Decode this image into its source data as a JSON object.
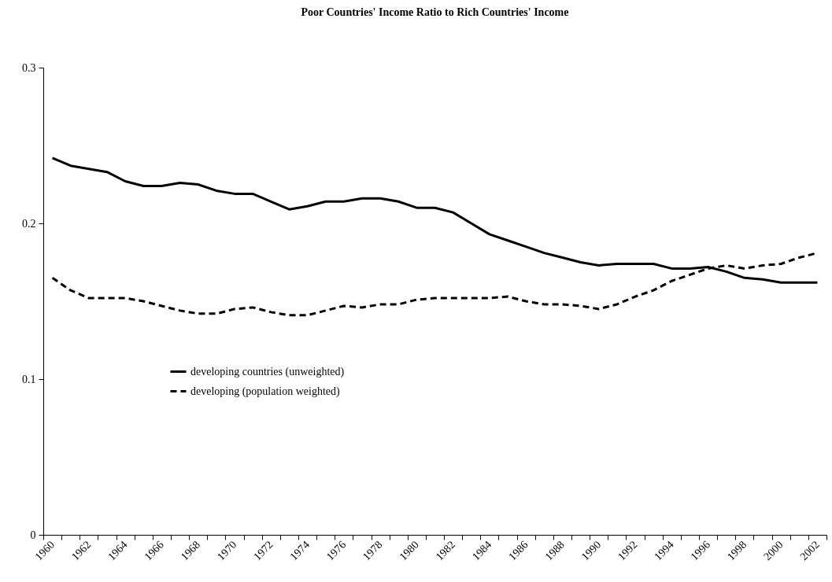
{
  "chart_data": {
    "type": "line",
    "title": "Poor Countries' Income Ratio to Rich Countries' Income",
    "categories": [
      "1960",
      null,
      "1962",
      null,
      "1964",
      null,
      "1966",
      null,
      "1968",
      null,
      "1970",
      null,
      "1972",
      null,
      "1974",
      null,
      "1976",
      null,
      "1978",
      null,
      "1980",
      null,
      "1982",
      null,
      "1984",
      null,
      "1986",
      null,
      "1988",
      null,
      "1990",
      null,
      "1992",
      null,
      "1994",
      null,
      "1996",
      null,
      "1998",
      null,
      "2000",
      null,
      "2002"
    ],
    "series": [
      {
        "name": "developing countries (unweighted)",
        "color": "#000000",
        "line_style": "solid",
        "values": [
          0.242,
          0.237,
          0.235,
          0.233,
          0.227,
          0.224,
          0.224,
          0.226,
          0.225,
          0.221,
          0.219,
          0.219,
          0.214,
          0.209,
          0.211,
          0.214,
          0.214,
          0.216,
          0.216,
          0.214,
          0.21,
          0.21,
          0.207,
          0.2,
          0.193,
          0.189,
          0.185,
          0.181,
          0.178,
          0.175,
          0.173,
          0.174,
          0.174,
          0.174,
          0.171,
          0.171,
          0.172,
          0.169,
          0.165,
          0.164,
          0.162,
          0.162,
          0.162
        ]
      },
      {
        "name": "developing (population weighted)",
        "color": "#000000",
        "line_style": "dashed",
        "values": [
          0.165,
          0.157,
          0.152,
          0.152,
          0.152,
          0.15,
          0.147,
          0.144,
          0.142,
          0.142,
          0.145,
          0.146,
          0.143,
          0.141,
          0.141,
          0.144,
          0.147,
          0.146,
          0.148,
          0.148,
          0.151,
          0.152,
          0.152,
          0.152,
          0.152,
          0.153,
          0.15,
          0.148,
          0.148,
          0.147,
          0.145,
          0.148,
          0.153,
          0.157,
          0.163,
          0.167,
          0.171,
          0.173,
          0.171,
          0.173,
          0.174,
          0.178,
          0.181
        ]
      }
    ],
    "ylim": [
      0,
      0.3
    ],
    "yticks": [
      0,
      0.1,
      0.2,
      0.3
    ],
    "legend": "left"
  }
}
